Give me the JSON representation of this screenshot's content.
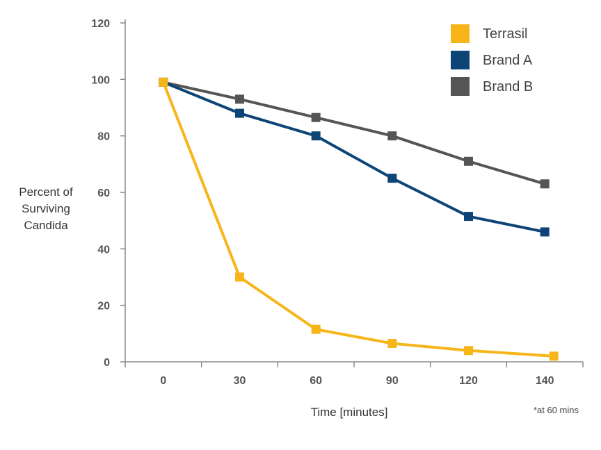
{
  "chart_data": {
    "type": "line",
    "x": [
      0,
      30,
      60,
      90,
      120,
      140
    ],
    "x_tick_labels": [
      "0",
      "30",
      "60",
      "90",
      "120",
      "140"
    ],
    "xlabel": "Time [minutes]",
    "ylabel_lines": [
      "Percent of",
      "Surviving",
      "Candida"
    ],
    "ylim": [
      0,
      120
    ],
    "y_ticks": [
      0,
      20,
      40,
      60,
      80,
      100,
      120
    ],
    "grid": false,
    "legend_position": "top-right",
    "series": [
      {
        "name": "Terrasil",
        "color": "#F7B519",
        "values": [
          99,
          30,
          11.5,
          6.5,
          4,
          2
        ]
      },
      {
        "name": "Brand A",
        "color": "#0E4577",
        "values": [
          99,
          88,
          80,
          65,
          51.5,
          46
        ]
      },
      {
        "name": "Brand B",
        "color": "#555555",
        "values": [
          99,
          93,
          86.5,
          80,
          71,
          63
        ]
      }
    ],
    "footnote": "*at 60 mins"
  }
}
